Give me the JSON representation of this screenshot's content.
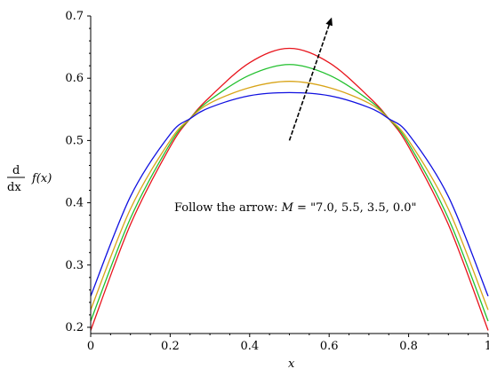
{
  "chart_data": {
    "type": "line",
    "xlabel": "x",
    "ylabel": {
      "numerator": "d",
      "denominator": "dx",
      "expression": "f(x)"
    },
    "xlim": [
      0,
      1
    ],
    "ylim": [
      0.19,
      0.7
    ],
    "x_ticks": [
      {
        "value": 0,
        "label": "0"
      },
      {
        "value": 0.2,
        "label": "0.2"
      },
      {
        "value": 0.4,
        "label": "0.4"
      },
      {
        "value": 0.6,
        "label": "0.6"
      },
      {
        "value": 0.8,
        "label": "0.8"
      },
      {
        "value": 1,
        "label": "1"
      }
    ],
    "y_ticks": [
      {
        "value": 0.2,
        "label": "0.2"
      },
      {
        "value": 0.3,
        "label": "0.3"
      },
      {
        "value": 0.4,
        "label": "0.4"
      },
      {
        "value": 0.5,
        "label": "0.5"
      },
      {
        "value": 0.6,
        "label": "0.6"
      },
      {
        "value": 0.7,
        "label": "0.7"
      }
    ],
    "grid": false,
    "annotation": {
      "prefix": "Follow the arrow: ",
      "var": "M",
      "suffix": " = \"7.0, 5.5, 3.5, 0.0\""
    },
    "arrow": {
      "from": {
        "x": 0.5,
        "y": 0.5
      },
      "to": {
        "x": 0.605,
        "y": 0.695
      },
      "style": "dashed"
    },
    "series": [
      {
        "color": "#e8141c",
        "x": [
          0,
          0.1,
          0.2,
          0.25,
          0.3,
          0.4,
          0.5,
          0.6,
          0.7,
          0.75,
          0.8,
          0.9,
          1
        ],
        "y": [
          0.195,
          0.365,
          0.49,
          0.535,
          0.57,
          0.625,
          0.648,
          0.625,
          0.57,
          0.535,
          0.49,
          0.365,
          0.195
        ]
      },
      {
        "color": "#22c02e",
        "x": [
          0,
          0.1,
          0.2,
          0.25,
          0.3,
          0.4,
          0.5,
          0.6,
          0.7,
          0.75,
          0.8,
          0.9,
          1
        ],
        "y": [
          0.21,
          0.375,
          0.495,
          0.535,
          0.565,
          0.605,
          0.622,
          0.605,
          0.565,
          0.535,
          0.495,
          0.375,
          0.21
        ]
      },
      {
        "color": "#d8a418",
        "x": [
          0,
          0.1,
          0.2,
          0.25,
          0.3,
          0.4,
          0.5,
          0.6,
          0.7,
          0.75,
          0.8,
          0.9,
          1
        ],
        "y": [
          0.228,
          0.39,
          0.5,
          0.535,
          0.56,
          0.585,
          0.595,
          0.585,
          0.56,
          0.535,
          0.5,
          0.39,
          0.228
        ]
      },
      {
        "color": "#1010e0",
        "x": [
          0,
          0.1,
          0.2,
          0.25,
          0.3,
          0.4,
          0.5,
          0.6,
          0.7,
          0.75,
          0.8,
          0.9,
          1
        ],
        "y": [
          0.25,
          0.41,
          0.51,
          0.535,
          0.553,
          0.572,
          0.577,
          0.572,
          0.553,
          0.535,
          0.51,
          0.41,
          0.25
        ]
      }
    ]
  }
}
